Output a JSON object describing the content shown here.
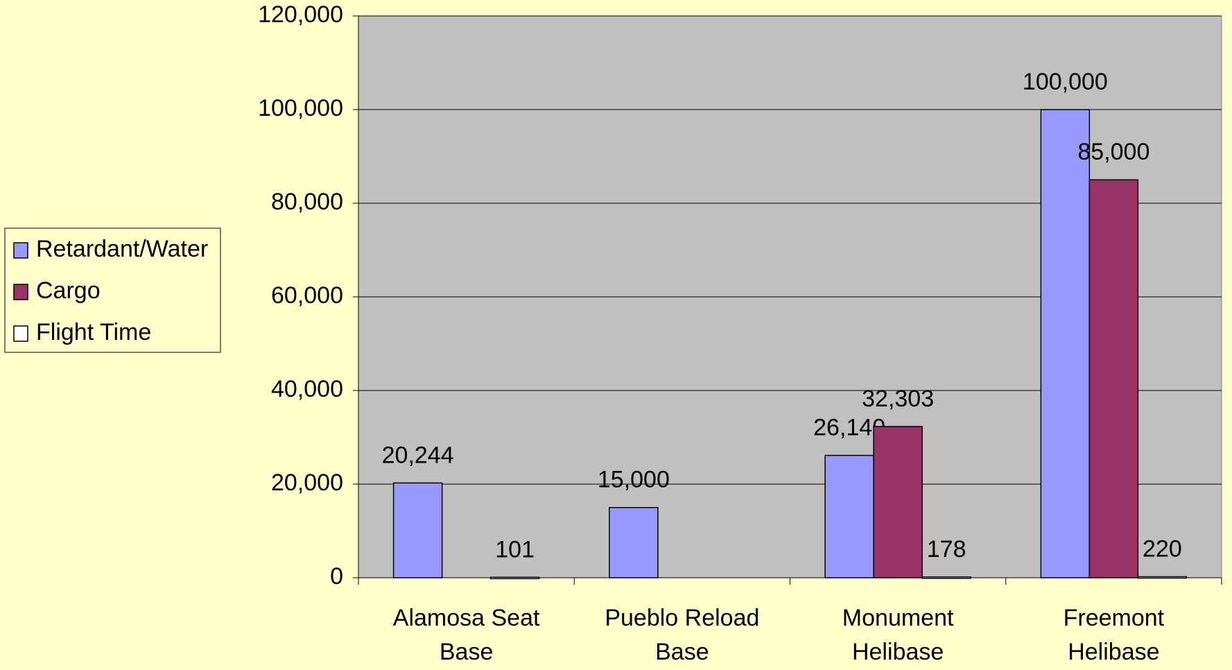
{
  "chart_data": {
    "type": "bar",
    "categories": [
      "Alamosa Seat Base",
      "Pueblo Reload Base",
      "Monument Helibase",
      "Freemont Helibase"
    ],
    "series": [
      {
        "name": "Retardant/Water",
        "color": "#9999ff",
        "values": [
          20244,
          15000,
          26140,
          100000
        ],
        "value_labels": [
          "20,244",
          "15,000",
          "26,140",
          "100,000"
        ]
      },
      {
        "name": "Cargo",
        "color": "#993366",
        "values": [
          null,
          null,
          32303,
          85000
        ],
        "value_labels": [
          null,
          null,
          "32,303",
          "85,000"
        ]
      },
      {
        "name": "Flight Time",
        "color": "#ffffff",
        "values": [
          101,
          null,
          178,
          220
        ]
      }
    ],
    "ylim": [
      0,
      120000
    ],
    "yticks": [
      0,
      {
        "value": 20000,
        "label": "20,000"
      },
      {
        "value": 40000,
        "label": "40,000"
      },
      {
        "value": 60000,
        "label": "60,000"
      },
      {
        "value": 80000,
        "label": "80,000"
      },
      {
        "value": 100000,
        "label": "100,000"
      },
      {
        "value": 120000,
        "label": "120,000"
      }
    ],
    "grid": true,
    "legend": "left"
  }
}
